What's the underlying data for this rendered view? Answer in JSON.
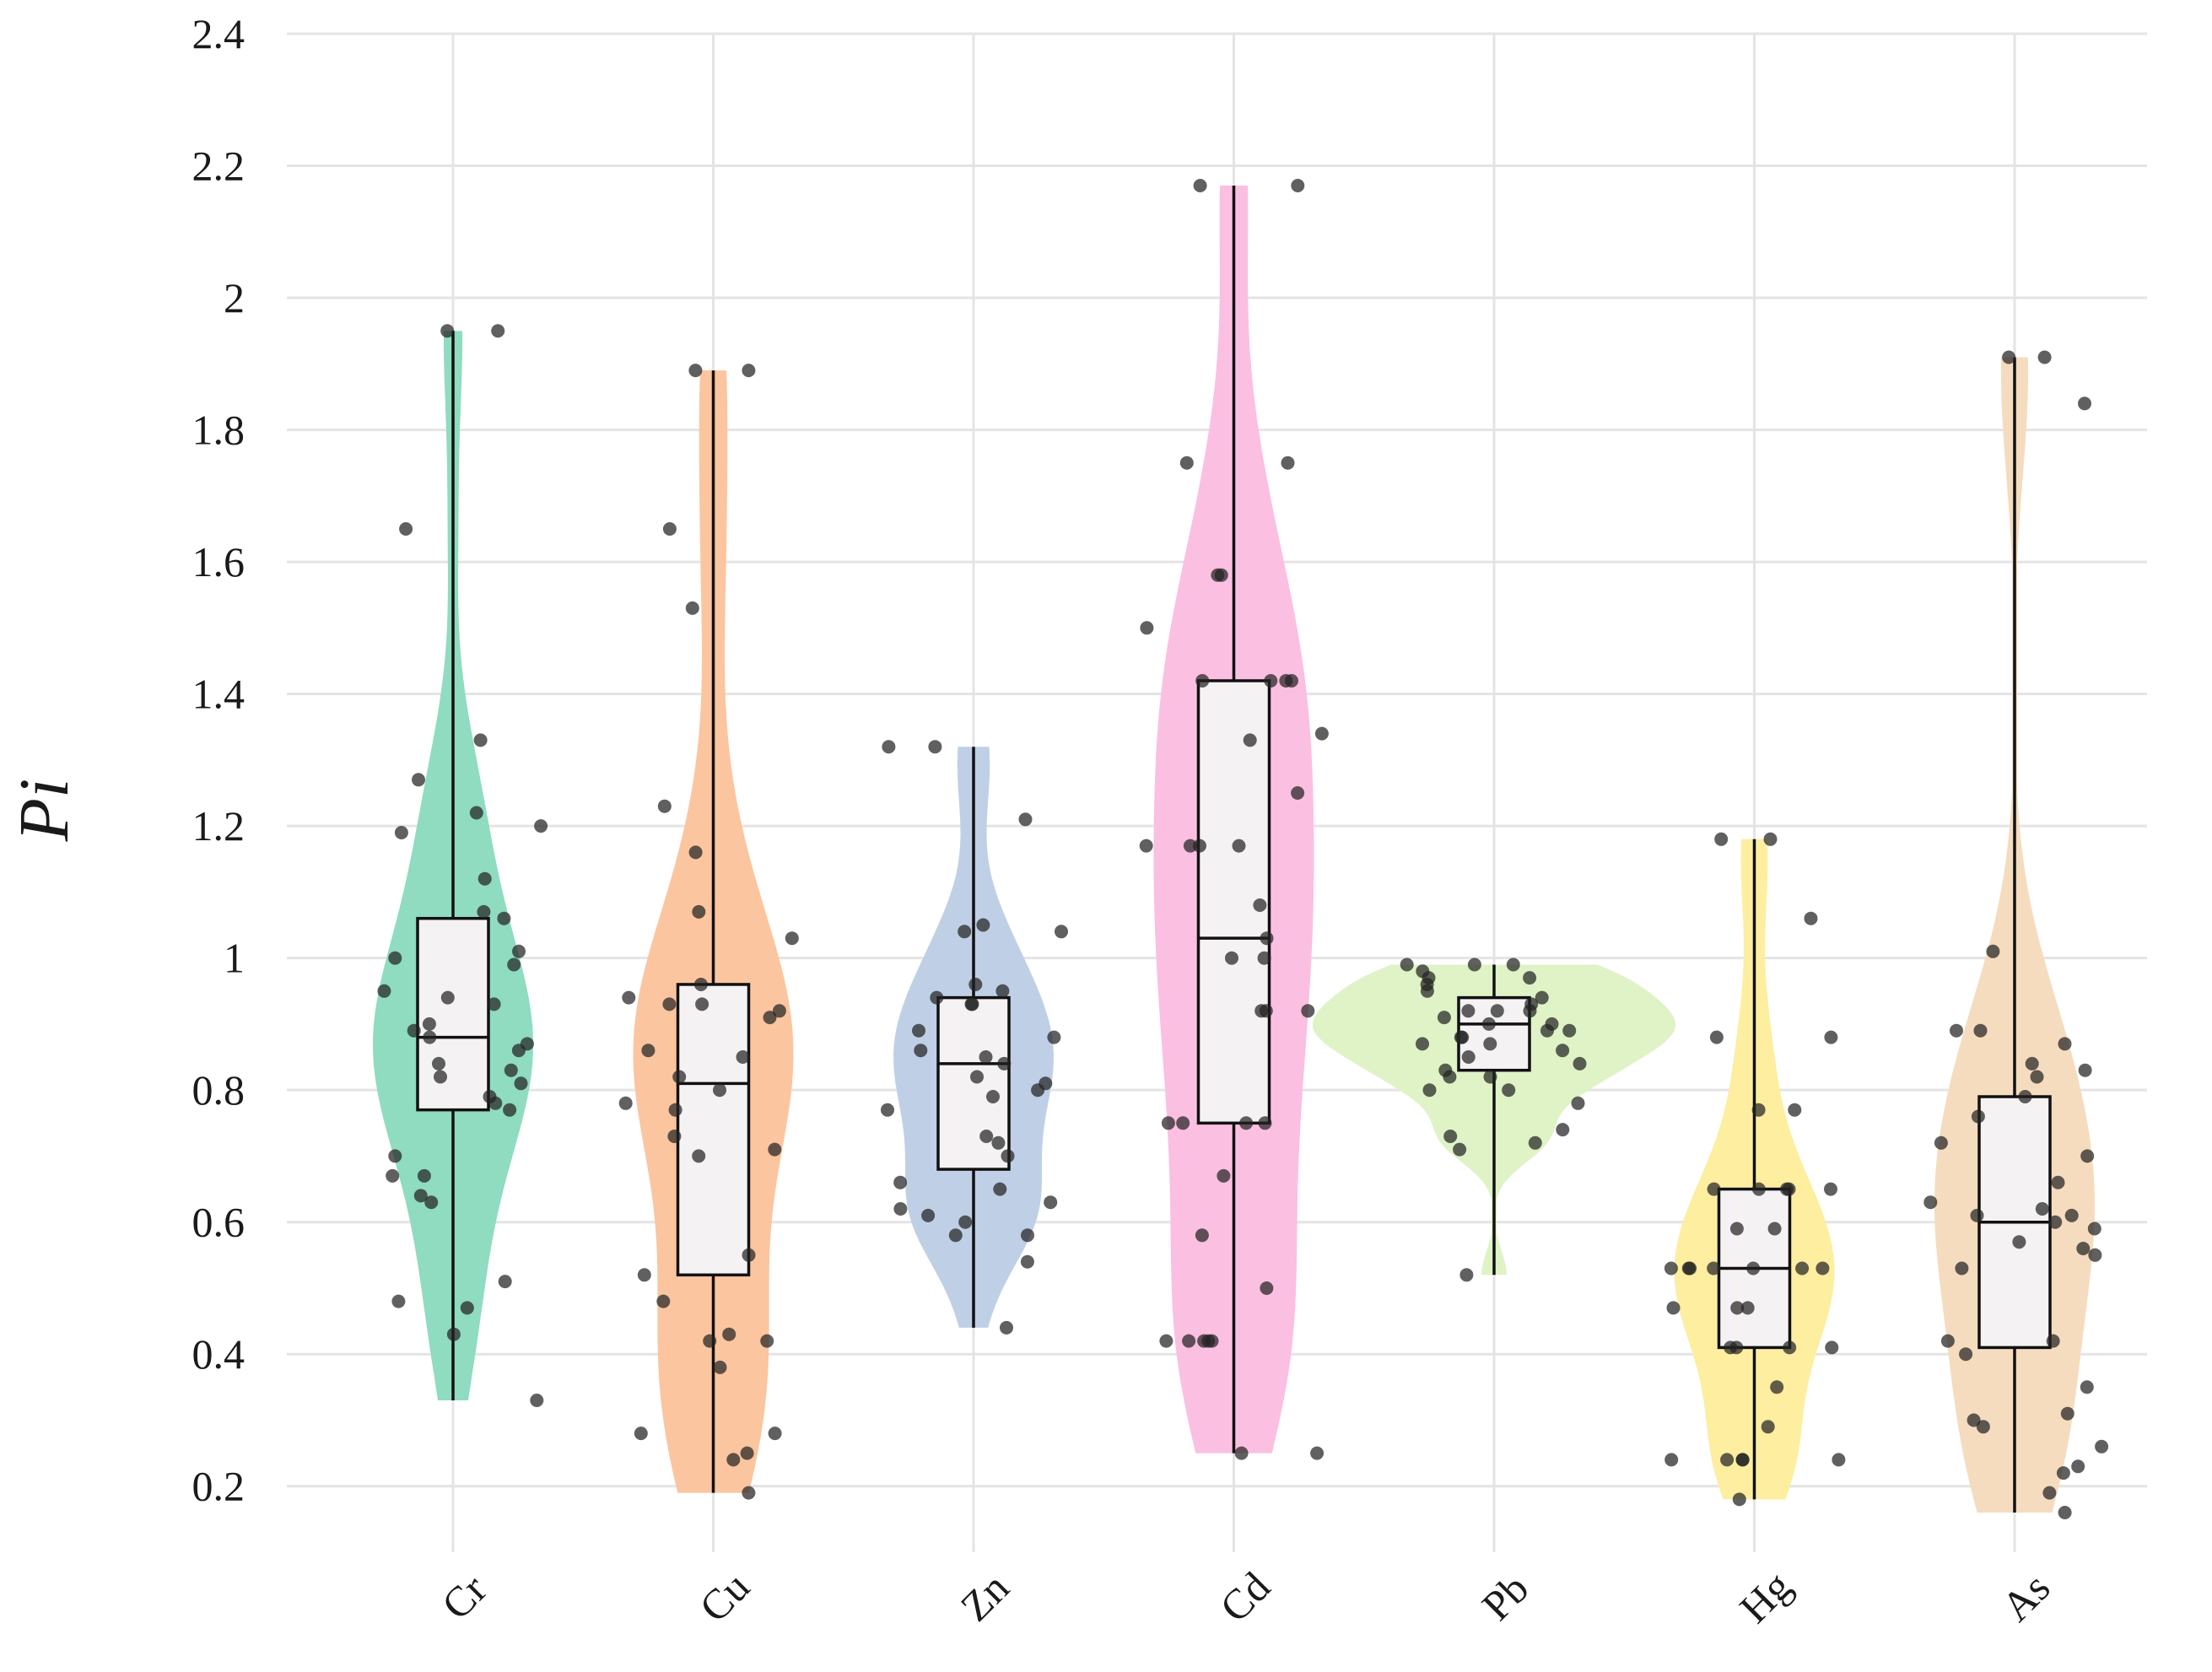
{
  "chart_data": {
    "type": "violin",
    "title": "",
    "xlabel": "",
    "ylabel": "Pi",
    "ylim": [
      0.1,
      2.4
    ],
    "yticks": [
      "0.2",
      "0.4",
      "0.6",
      "0.8",
      "1",
      "1.2",
      "1.4",
      "1.6",
      "1.8",
      "2",
      "2.2",
      "2.4"
    ],
    "grid": true,
    "categories": [
      "Cr",
      "Cu",
      "Zn",
      "Cd",
      "Pb",
      "Hg",
      "As"
    ],
    "series": [
      {
        "name": "Cr",
        "color": "#8fdcc0",
        "box": {
          "min": 0.33,
          "q1": 0.77,
          "median": 0.88,
          "q3": 1.06,
          "max": 1.95
        },
        "points": [
          1.33,
          1.27,
          1.22,
          1.2,
          1.12,
          1.07,
          1.0,
          0.81,
          0.79,
          0.83,
          0.78,
          0.67,
          0.51,
          0.48,
          0.47,
          1.65,
          1.19,
          1.06,
          1.01,
          0.99,
          0.95,
          0.94,
          0.93,
          0.9,
          0.89,
          0.88,
          0.87,
          0.86,
          0.84,
          0.82,
          0.77,
          0.7,
          0.67,
          0.64,
          0.63,
          0.43,
          0.33,
          1.95,
          1.95
        ]
      },
      {
        "name": "Cu",
        "color": "#fbc59f",
        "box": {
          "min": 0.19,
          "q1": 0.52,
          "median": 0.81,
          "q3": 0.96,
          "max": 1.89
        },
        "points": [
          1.23,
          0.93,
          0.92,
          0.91,
          0.82,
          0.8,
          0.71,
          0.55,
          0.52,
          0.43,
          0.28,
          0.25,
          1.89,
          1.89,
          1.65,
          1.53,
          1.16,
          1.07,
          1.03,
          0.96,
          0.94,
          0.93,
          0.86,
          0.85,
          0.78,
          0.77,
          0.73,
          0.7,
          0.48,
          0.42,
          0.42,
          0.38,
          0.28,
          0.24,
          0.19
        ]
      },
      {
        "name": "Zn",
        "color": "#bfd0e6",
        "box": {
          "min": 0.44,
          "q1": 0.68,
          "median": 0.84,
          "q3": 0.94,
          "max": 1.32
        },
        "points": [
          1.32,
          1.05,
          1.04,
          0.96,
          0.95,
          0.94,
          0.93,
          0.88,
          0.86,
          0.82,
          0.81,
          0.79,
          0.77,
          0.72,
          0.65,
          0.58,
          0.58,
          0.44,
          1.32,
          1.21,
          1.04,
          0.93,
          0.89,
          0.85,
          0.84,
          0.8,
          0.73,
          0.7,
          0.66,
          0.63,
          0.62,
          0.61,
          0.6,
          0.54
        ]
      },
      {
        "name": "Cd",
        "color": "#fbbfe1",
        "box": {
          "min": 0.25,
          "q1": 0.75,
          "median": 1.03,
          "q3": 1.42,
          "max": 2.17
        },
        "points": [
          2.17,
          2.17,
          1.75,
          1.75,
          1.58,
          1.58,
          1.5,
          1.42,
          1.42,
          1.42,
          1.42,
          1.34,
          1.33,
          1.25,
          1.17,
          1.17,
          1.17,
          1.17,
          1.08,
          1.03,
          1.0,
          1.0,
          0.92,
          0.92,
          0.92,
          0.75,
          0.75,
          0.75,
          0.75,
          0.67,
          0.58,
          0.5,
          0.42,
          0.42,
          0.42,
          0.42,
          0.42,
          0.25,
          0.25
        ]
      },
      {
        "name": "Pb",
        "color": "#dff3c6",
        "box": {
          "min": 0.52,
          "q1": 0.83,
          "median": 0.9,
          "q3": 0.94,
          "max": 0.99
        },
        "points": [
          0.97,
          0.92,
          0.9,
          0.89,
          0.88,
          0.87,
          0.82,
          0.8,
          0.74,
          0.52,
          0.99,
          0.99,
          0.99,
          0.98,
          0.97,
          0.96,
          0.95,
          0.94,
          0.93,
          0.92,
          0.92,
          0.91,
          0.9,
          0.89,
          0.88,
          0.87,
          0.86,
          0.85,
          0.84,
          0.83,
          0.82,
          0.8,
          0.78,
          0.73,
          0.72,
          0.71
        ]
      },
      {
        "name": "Hg",
        "color": "#fdeea0",
        "box": {
          "min": 0.18,
          "q1": 0.41,
          "median": 0.53,
          "q3": 0.65,
          "max": 1.18
        },
        "points": [
          1.06,
          0.88,
          0.77,
          0.77,
          0.65,
          0.65,
          0.65,
          0.65,
          0.53,
          0.53,
          0.53,
          0.53,
          0.53,
          0.47,
          0.41,
          0.41,
          0.35,
          0.29,
          0.24,
          0.24,
          0.24,
          1.18,
          1.18,
          0.88,
          0.65,
          0.59,
          0.59,
          0.53,
          0.53,
          0.47,
          0.47,
          0.41,
          0.41,
          0.24,
          0.24,
          0.18
        ]
      },
      {
        "name": "As",
        "color": "#f5dcbf",
        "box": {
          "min": 0.16,
          "q1": 0.41,
          "median": 0.6,
          "q3": 0.79,
          "max": 1.91
        },
        "points": [
          1.01,
          0.89,
          0.83,
          0.76,
          0.55,
          0.42,
          0.26,
          0.16,
          1.91,
          1.91,
          1.84,
          0.89,
          0.87,
          0.84,
          0.82,
          0.79,
          0.72,
          0.7,
          0.66,
          0.63,
          0.62,
          0.61,
          0.61,
          0.6,
          0.59,
          0.57,
          0.56,
          0.53,
          0.42,
          0.4,
          0.35,
          0.31,
          0.3,
          0.29,
          0.23,
          0.22,
          0.19
        ]
      }
    ]
  }
}
